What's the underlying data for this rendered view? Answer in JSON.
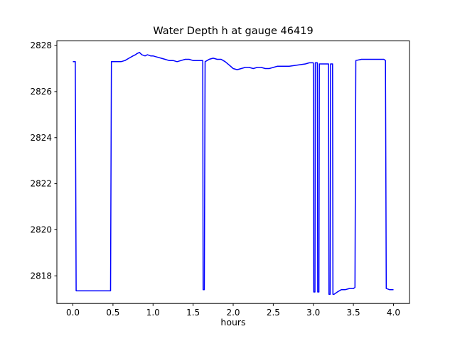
{
  "chart_data": {
    "type": "line",
    "title": "Water Depth h at gauge 46419",
    "xlabel": "hours",
    "ylabel": "",
    "xlim": [
      -0.2,
      4.2
    ],
    "ylim": [
      2816.8,
      2828.2
    ],
    "xticks": [
      0.0,
      0.5,
      1.0,
      1.5,
      2.0,
      2.5,
      3.0,
      3.5,
      4.0
    ],
    "yticks": [
      2818,
      2820,
      2822,
      2824,
      2826,
      2828
    ],
    "grid": false,
    "legend": "none",
    "line_color": "#0000ff",
    "series": [
      {
        "name": "h",
        "points": [
          [
            0.0,
            2827.3
          ],
          [
            0.03,
            2827.3
          ],
          [
            0.04,
            2817.35
          ],
          [
            0.1,
            2817.35
          ],
          [
            0.2,
            2817.35
          ],
          [
            0.3,
            2817.35
          ],
          [
            0.4,
            2817.35
          ],
          [
            0.47,
            2817.35
          ],
          [
            0.48,
            2827.3
          ],
          [
            0.52,
            2827.3
          ],
          [
            0.56,
            2827.3
          ],
          [
            0.6,
            2827.3
          ],
          [
            0.65,
            2827.35
          ],
          [
            0.7,
            2827.45
          ],
          [
            0.75,
            2827.55
          ],
          [
            0.78,
            2827.6
          ],
          [
            0.8,
            2827.65
          ],
          [
            0.83,
            2827.7
          ],
          [
            0.86,
            2827.6
          ],
          [
            0.9,
            2827.55
          ],
          [
            0.93,
            2827.6
          ],
          [
            0.97,
            2827.55
          ],
          [
            1.0,
            2827.55
          ],
          [
            1.05,
            2827.5
          ],
          [
            1.1,
            2827.45
          ],
          [
            1.15,
            2827.4
          ],
          [
            1.2,
            2827.35
          ],
          [
            1.25,
            2827.35
          ],
          [
            1.3,
            2827.3
          ],
          [
            1.35,
            2827.35
          ],
          [
            1.4,
            2827.4
          ],
          [
            1.45,
            2827.4
          ],
          [
            1.5,
            2827.35
          ],
          [
            1.55,
            2827.35
          ],
          [
            1.6,
            2827.35
          ],
          [
            1.62,
            2827.35
          ],
          [
            1.625,
            2817.4
          ],
          [
            1.64,
            2817.4
          ],
          [
            1.65,
            2827.3
          ],
          [
            1.7,
            2827.4
          ],
          [
            1.75,
            2827.45
          ],
          [
            1.8,
            2827.4
          ],
          [
            1.85,
            2827.4
          ],
          [
            1.9,
            2827.3
          ],
          [
            1.95,
            2827.15
          ],
          [
            2.0,
            2827.0
          ],
          [
            2.05,
            2826.95
          ],
          [
            2.1,
            2827.0
          ],
          [
            2.15,
            2827.05
          ],
          [
            2.2,
            2827.05
          ],
          [
            2.25,
            2827.0
          ],
          [
            2.3,
            2827.05
          ],
          [
            2.35,
            2827.05
          ],
          [
            2.4,
            2827.0
          ],
          [
            2.45,
            2827.0
          ],
          [
            2.5,
            2827.05
          ],
          [
            2.55,
            2827.1
          ],
          [
            2.6,
            2827.1
          ],
          [
            2.7,
            2827.1
          ],
          [
            2.8,
            2827.15
          ],
          [
            2.9,
            2827.2
          ],
          [
            2.95,
            2827.25
          ],
          [
            3.0,
            2827.25
          ],
          [
            3.005,
            2817.3
          ],
          [
            3.02,
            2817.3
          ],
          [
            3.025,
            2827.25
          ],
          [
            3.05,
            2827.25
          ],
          [
            3.055,
            2817.3
          ],
          [
            3.07,
            2817.3
          ],
          [
            3.075,
            2827.2
          ],
          [
            3.12,
            2827.2
          ],
          [
            3.19,
            2827.2
          ],
          [
            3.195,
            2817.2
          ],
          [
            3.21,
            2817.2
          ],
          [
            3.215,
            2827.2
          ],
          [
            3.24,
            2827.2
          ],
          [
            3.245,
            2817.2
          ],
          [
            3.26,
            2817.2
          ],
          [
            3.3,
            2817.3
          ],
          [
            3.35,
            2817.4
          ],
          [
            3.4,
            2817.4
          ],
          [
            3.45,
            2817.45
          ],
          [
            3.5,
            2817.45
          ],
          [
            3.52,
            2817.5
          ],
          [
            3.53,
            2827.35
          ],
          [
            3.6,
            2827.4
          ],
          [
            3.7,
            2827.4
          ],
          [
            3.8,
            2827.4
          ],
          [
            3.88,
            2827.4
          ],
          [
            3.9,
            2827.35
          ],
          [
            3.91,
            2817.45
          ],
          [
            3.95,
            2817.4
          ],
          [
            4.0,
            2817.4
          ]
        ]
      }
    ]
  }
}
